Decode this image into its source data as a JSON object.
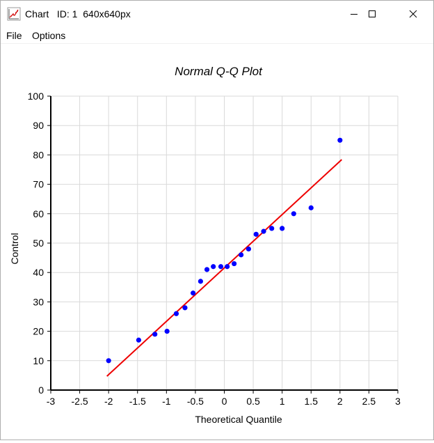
{
  "window": {
    "title": "Chart   ID: 1  640x640px",
    "icon": "chart-app-icon",
    "controls": {
      "minimize": "minimize-icon",
      "maximize": "maximize-icon",
      "close": "close-icon"
    }
  },
  "menu": {
    "items": [
      "File",
      "Options"
    ]
  },
  "chart_data": {
    "type": "scatter",
    "title": "Normal Q-Q Plot",
    "xlabel": "Theoretical Quantile",
    "ylabel": "Control",
    "xlim": [
      -3,
      3
    ],
    "ylim": [
      0,
      100
    ],
    "xticks": [
      -3,
      -2.5,
      -2,
      -1.5,
      -1,
      -0.5,
      0,
      0.5,
      1,
      1.5,
      2,
      2.5,
      3
    ],
    "yticks": [
      0,
      10,
      20,
      30,
      40,
      50,
      60,
      70,
      80,
      90,
      100
    ],
    "xtick_labels": [
      "-3",
      "-2.5",
      "-2",
      "-1.5",
      "-1",
      "-0.5",
      "0",
      "0.5",
      "1",
      "1.5",
      "2",
      "2.5",
      "3"
    ],
    "ytick_labels": [
      "0",
      "10",
      "20",
      "30",
      "40",
      "50",
      "60",
      "70",
      "80",
      "90",
      "100"
    ],
    "grid": true,
    "points": {
      "color": "#0000ff",
      "x": [
        -2.0,
        -1.48,
        -1.2,
        -0.99,
        -0.83,
        -0.68,
        -0.54,
        -0.41,
        -0.3,
        -0.19,
        -0.06,
        0.05,
        0.17,
        0.29,
        0.42,
        0.55,
        0.68,
        0.82,
        1.0,
        1.2,
        1.5,
        2.0
      ],
      "y": [
        10,
        17,
        19,
        20,
        26,
        28,
        33,
        37,
        41,
        42,
        42,
        42,
        43,
        46,
        48,
        53,
        54,
        55,
        55,
        60,
        62,
        85
      ]
    },
    "reference_line": {
      "color": "#ee0000",
      "x": [
        -2.03,
        2.03
      ],
      "y": [
        4.7,
        78.4
      ]
    }
  }
}
